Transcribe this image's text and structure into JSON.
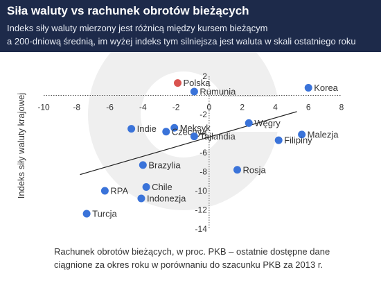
{
  "header": {
    "title": "Siła waluty vs rachunek obrotów bieżących",
    "subtitle_lines": [
      "Indeks siły waluty mierzony jest różnicą między kursem bieżącym",
      "a 200-dniową średnią, im wyżej indeks tym silniejsza jest waluta w skali ostatniego roku"
    ]
  },
  "chart_data": {
    "type": "scatter",
    "title": "Siła waluty vs rachunek obrotów bieżących",
    "xlabel_lines": [
      "Rachunek obrotów bieżących, w proc. PKB – ostatnie dostępne dane",
      "ciągnione za okres roku w porównaniu do szacunku PKB za 2013 r."
    ],
    "ylabel": "Indeks siły waluty krajowej",
    "xlim": [
      -10,
      8
    ],
    "ylim": [
      -14,
      2
    ],
    "xticks": [
      "-10",
      "-8",
      "-6",
      "-4",
      "-2",
      "0",
      "2",
      "4",
      "6",
      "8"
    ],
    "yticks": [
      "2",
      "-2",
      "-4",
      "-6",
      "-8",
      "-10",
      "-12",
      "-14"
    ],
    "points": [
      {
        "label": "Polska",
        "x": -1.9,
        "y": 1.3,
        "highlight": true
      },
      {
        "label": "Rumunia",
        "x": -0.9,
        "y": 0.4
      },
      {
        "label": "Korea",
        "x": 6.0,
        "y": 0.8
      },
      {
        "label": "Indie",
        "x": -4.7,
        "y": -3.5
      },
      {
        "label": "Meksyk",
        "x": -2.1,
        "y": -3.4
      },
      {
        "label": "Czechy",
        "x": -2.6,
        "y": -3.8
      },
      {
        "label": "Tajlandia",
        "x": -0.9,
        "y": -4.3
      },
      {
        "label": "Węgry",
        "x": 2.4,
        "y": -2.9
      },
      {
        "label": "Malezja",
        "x": 5.6,
        "y": -4.1
      },
      {
        "label": "Filipiny",
        "x": 4.2,
        "y": -4.7
      },
      {
        "label": "Brazylia",
        "x": -4.0,
        "y": -7.3
      },
      {
        "label": "Rosja",
        "x": 1.7,
        "y": -7.8
      },
      {
        "label": "RPA",
        "x": -6.3,
        "y": -10.0
      },
      {
        "label": "Chile",
        "x": -3.8,
        "y": -9.6
      },
      {
        "label": "Indonezja",
        "x": -4.1,
        "y": -10.8
      },
      {
        "label": "Turcja",
        "x": -7.4,
        "y": -12.4
      }
    ],
    "trendline": {
      "x": [
        -7.8,
        5.3
      ],
      "y": [
        -8.3,
        -1.7
      ]
    },
    "colors": {
      "point": "#3a73d9",
      "highlight": "#d9534f",
      "trendline": "#222222",
      "axis": "#555555"
    }
  }
}
